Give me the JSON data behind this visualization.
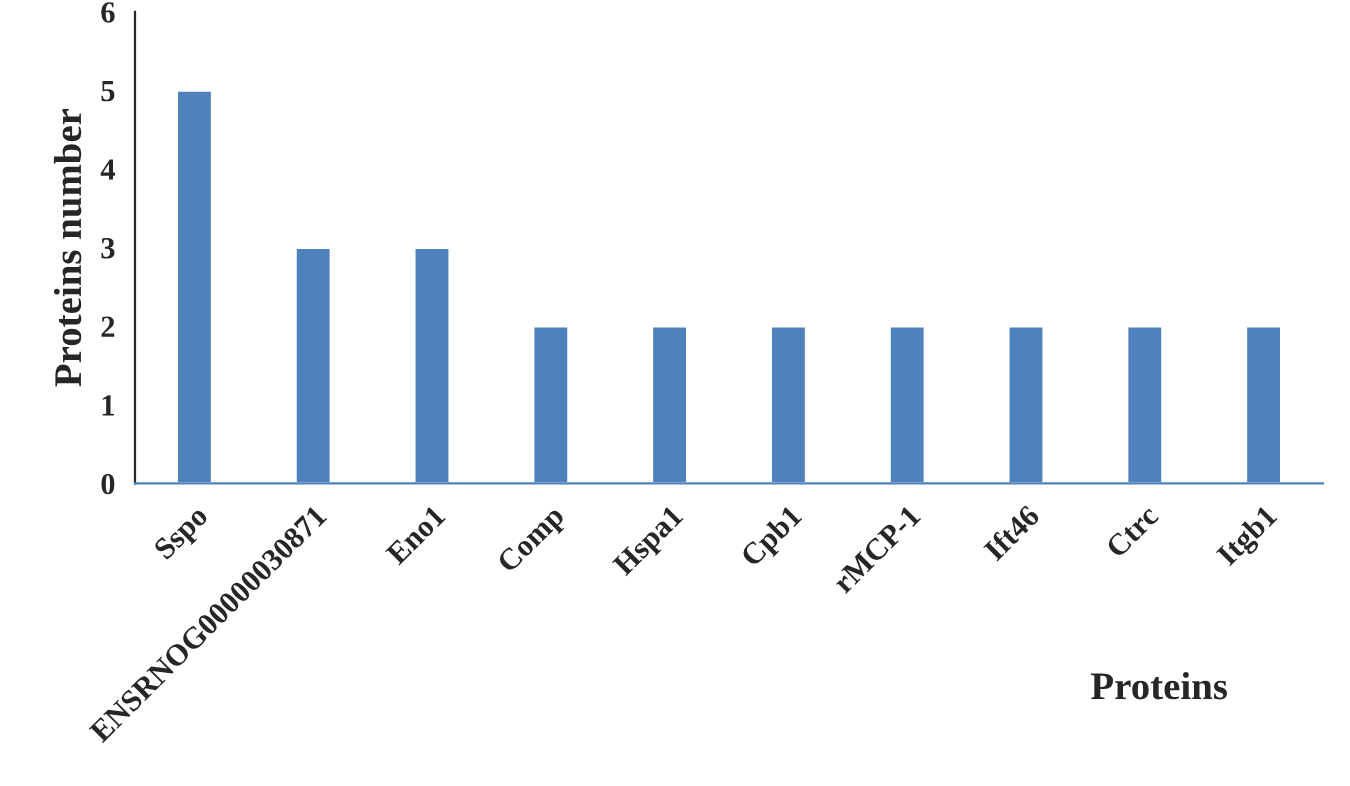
{
  "chart_data": {
    "type": "bar",
    "xlabel": "Proteins",
    "ylabel": "Proteins number",
    "categories": [
      "Sspo",
      "ENSRNOG00000030871",
      "Eno1",
      "Comp",
      "Hspa1",
      "Cpb1",
      "rMCP-1",
      "Ift46",
      "Ctrc",
      "Itgb1"
    ],
    "values": [
      5,
      3,
      3,
      2,
      2,
      2,
      2,
      2,
      2,
      2
    ],
    "color": "#4f81bd",
    "ylim": [
      0,
      6
    ],
    "yticks": [
      0,
      1,
      2,
      3,
      4,
      5,
      6
    ],
    "grid": false
  }
}
